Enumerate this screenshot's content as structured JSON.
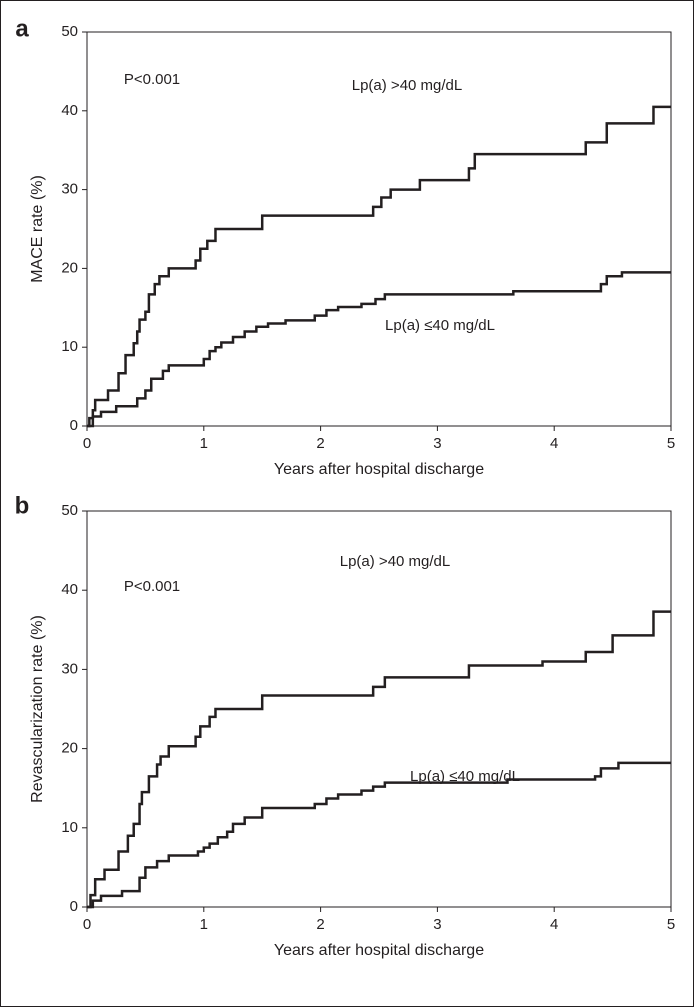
{
  "chart_data": [
    {
      "type": "step",
      "panel_label": "a",
      "annotation": "P<0.001",
      "xlabel": "Years after hospital discharge",
      "ylabel": "MACE rate (%)",
      "xlim": [
        0,
        5
      ],
      "xticks": [
        0,
        1,
        2,
        3,
        4,
        5
      ],
      "ylim": [
        0,
        50
      ],
      "yticks": [
        0,
        10,
        20,
        30,
        40,
        50
      ],
      "series": [
        {
          "name": "Lp(a) >40 mg/dL",
          "color": "#231f20",
          "x": [
            0,
            0.02,
            0.05,
            0.07,
            0.18,
            0.27,
            0.33,
            0.4,
            0.43,
            0.45,
            0.5,
            0.53,
            0.58,
            0.62,
            0.7,
            0.93,
            0.97,
            1.03,
            1.1,
            1.5,
            2.45,
            2.52,
            2.6,
            2.85,
            3.27,
            3.32,
            4.27,
            4.45,
            4.85,
            5
          ],
          "values": [
            0,
            1,
            2,
            3.3,
            4.5,
            6.7,
            9,
            10.5,
            12,
            13.5,
            14.5,
            16.7,
            18,
            19,
            20,
            21,
            22.5,
            23.5,
            25,
            26.7,
            27.8,
            29,
            30,
            31.2,
            32.7,
            34.5,
            36,
            38.4,
            40.5,
            40.5
          ]
        },
        {
          "name": "Lp(a) ≤40 mg/dL",
          "color": "#231f20",
          "x": [
            0,
            0.05,
            0.12,
            0.25,
            0.43,
            0.5,
            0.55,
            0.65,
            0.7,
            1,
            1.05,
            1.1,
            1.15,
            1.25,
            1.35,
            1.45,
            1.55,
            1.7,
            1.95,
            2.05,
            2.15,
            2.35,
            2.47,
            2.55,
            3.65,
            4.4,
            4.45,
            4.58,
            5
          ],
          "values": [
            0,
            1.2,
            1.8,
            2.5,
            3.5,
            4.5,
            6,
            7,
            7.7,
            8.5,
            9.5,
            10,
            10.6,
            11.3,
            12,
            12.6,
            13,
            13.4,
            14,
            14.7,
            15.1,
            15.5,
            16.1,
            16.7,
            17.1,
            18,
            19,
            19.5,
            19.5
          ]
        }
      ]
    },
    {
      "type": "step",
      "panel_label": "b",
      "annotation": "P<0.001",
      "xlabel": "Years after hospital discharge",
      "ylabel": "Revascularization rate (%)",
      "xlim": [
        0,
        5
      ],
      "xticks": [
        0,
        1,
        2,
        3,
        4,
        5
      ],
      "ylim": [
        0,
        50
      ],
      "yticks": [
        0,
        10,
        20,
        30,
        40,
        50
      ],
      "series": [
        {
          "name": "Lp(a) >40 mg/dL",
          "color": "#231f20",
          "x": [
            0,
            0.03,
            0.07,
            0.15,
            0.27,
            0.35,
            0.4,
            0.45,
            0.47,
            0.53,
            0.6,
            0.63,
            0.7,
            0.93,
            0.97,
            1.05,
            1.1,
            1.5,
            2.45,
            2.55,
            3.27,
            3.9,
            4.27,
            4.5,
            4.85,
            5
          ],
          "values": [
            0,
            1.5,
            3.5,
            4.7,
            7,
            9,
            10.5,
            13,
            14.5,
            16.5,
            18,
            19,
            20.3,
            21.5,
            22.8,
            24,
            25,
            26.7,
            27.8,
            29,
            30.5,
            31,
            32.2,
            34.3,
            37.3,
            37.3
          ]
        },
        {
          "name": "Lp(a) ≤40 mg/dL",
          "color": "#231f20",
          "x": [
            0,
            0.05,
            0.12,
            0.3,
            0.45,
            0.5,
            0.6,
            0.7,
            0.95,
            1,
            1.05,
            1.12,
            1.2,
            1.25,
            1.35,
            1.5,
            1.95,
            2.05,
            2.15,
            2.35,
            2.45,
            2.55,
            3.6,
            4.35,
            4.4,
            4.55,
            5
          ],
          "values": [
            0,
            0.8,
            1.4,
            2,
            3.7,
            5,
            5.8,
            6.5,
            7,
            7.5,
            8,
            8.8,
            9.5,
            10.5,
            11.3,
            12.5,
            13,
            13.7,
            14.2,
            14.7,
            15.2,
            15.7,
            16.1,
            16.5,
            17.5,
            18.2,
            18.2
          ]
        }
      ]
    }
  ]
}
